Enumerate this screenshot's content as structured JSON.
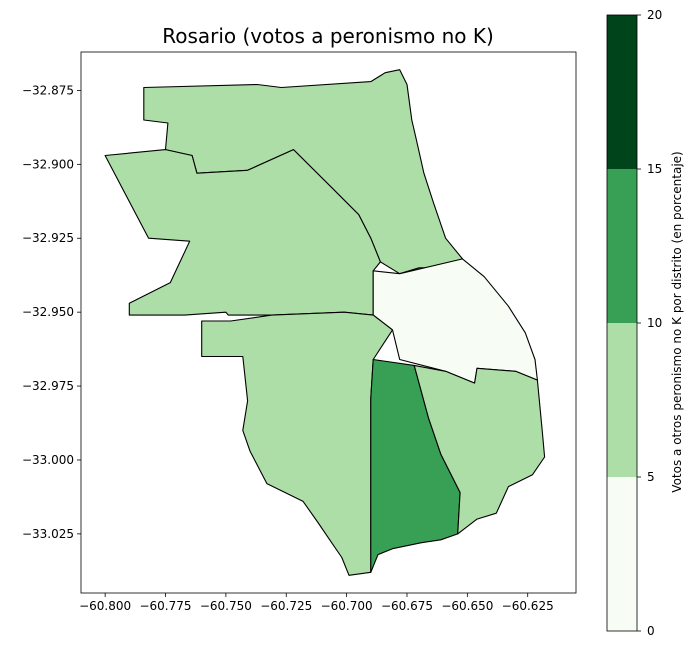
{
  "chart_data": {
    "type": "choropleth",
    "title": "Rosario (votos a peronismo no K)",
    "xlim": [
      -60.81,
      -60.605
    ],
    "ylim": [
      -33.045,
      -32.862
    ],
    "x_ticks": [
      -60.8,
      -60.775,
      -60.75,
      -60.725,
      -60.7,
      -60.675,
      -60.65,
      -60.625
    ],
    "x_tick_labels": [
      "−60.800",
      "−60.775",
      "−60.750",
      "−60.725",
      "−60.700",
      "−60.675",
      "−60.650",
      "−60.625"
    ],
    "y_ticks": [
      -32.875,
      -32.9,
      -32.925,
      -32.95,
      -32.975,
      -33.0,
      -33.025
    ],
    "y_tick_labels": [
      "−32.875",
      "−32.900",
      "−32.925",
      "−32.950",
      "−32.975",
      "−33.000",
      "−33.025"
    ],
    "colorbar": {
      "label": "Votos a otros peronismo no K por distrito (en porcentaje)",
      "bins": [
        0,
        5,
        10,
        15,
        20
      ],
      "tick_labels": [
        "0",
        "5",
        "10",
        "15",
        "20"
      ],
      "colors": [
        "#f7fcf5",
        "#addea7",
        "#37a055",
        "#00441b"
      ]
    },
    "districts": [
      {
        "value_bin": [
          5,
          10
        ],
        "color": "#addea7",
        "outline": [
          [
            -60.784,
            -32.874
          ],
          [
            -60.737,
            -32.873
          ],
          [
            -60.727,
            -32.874
          ],
          [
            -60.69,
            -32.872
          ],
          [
            -60.684,
            -32.869
          ],
          [
            -60.678,
            -32.868
          ],
          [
            -60.675,
            -32.873
          ],
          [
            -60.673,
            -32.885
          ],
          [
            -60.671,
            -32.892
          ],
          [
            -60.668,
            -32.903
          ],
          [
            -60.664,
            -32.913
          ],
          [
            -60.659,
            -32.925
          ],
          [
            -60.652,
            -32.932
          ],
          [
            -60.66,
            -32.935
          ],
          [
            -60.67,
            -32.935
          ],
          [
            -60.678,
            -32.937
          ],
          [
            -60.686,
            -32.933
          ],
          [
            -60.69,
            -32.925
          ],
          [
            -60.695,
            -32.917
          ],
          [
            -60.706,
            -32.908
          ],
          [
            -60.722,
            -32.895
          ],
          [
            -60.741,
            -32.902
          ],
          [
            -60.762,
            -32.903
          ],
          [
            -60.764,
            -32.897
          ],
          [
            -60.775,
            -32.895
          ],
          [
            -60.774,
            -32.886
          ],
          [
            -60.784,
            -32.885
          ]
        ]
      },
      {
        "value_bin": [
          5,
          10
        ],
        "color": "#addea7",
        "outline": [
          [
            -60.8,
            -32.897
          ],
          [
            -60.775,
            -32.895
          ],
          [
            -60.764,
            -32.897
          ],
          [
            -60.762,
            -32.903
          ],
          [
            -60.741,
            -32.902
          ],
          [
            -60.722,
            -32.895
          ],
          [
            -60.706,
            -32.908
          ],
          [
            -60.695,
            -32.917
          ],
          [
            -60.69,
            -32.925
          ],
          [
            -60.686,
            -32.933
          ],
          [
            -60.689,
            -32.936
          ],
          [
            -60.689,
            -32.951
          ],
          [
            -60.701,
            -32.95
          ],
          [
            -60.731,
            -32.951
          ],
          [
            -60.749,
            -32.951
          ],
          [
            -60.75,
            -32.95
          ],
          [
            -60.767,
            -32.951
          ],
          [
            -60.79,
            -32.951
          ],
          [
            -60.79,
            -32.947
          ],
          [
            -60.773,
            -32.94
          ],
          [
            -60.769,
            -32.933
          ],
          [
            -60.765,
            -32.926
          ],
          [
            -60.782,
            -32.925
          ]
        ]
      },
      {
        "value_bin": [
          0,
          5
        ],
        "color": "#f7fcf5",
        "outline": [
          [
            -60.689,
            -32.936
          ],
          [
            -60.678,
            -32.937
          ],
          [
            -60.652,
            -32.932
          ],
          [
            -60.643,
            -32.938
          ],
          [
            -60.633,
            -32.948
          ],
          [
            -60.626,
            -32.957
          ],
          [
            -60.622,
            -32.966
          ],
          [
            -60.621,
            -32.973
          ],
          [
            -60.63,
            -32.97
          ],
          [
            -60.646,
            -32.969
          ],
          [
            -60.647,
            -32.974
          ],
          [
            -60.659,
            -32.97
          ],
          [
            -60.678,
            -32.966
          ],
          [
            -60.681,
            -32.956
          ],
          [
            -60.689,
            -32.951
          ]
        ]
      },
      {
        "value_bin": [
          5,
          10
        ],
        "color": "#addea7",
        "outline": [
          [
            -60.689,
            -32.951
          ],
          [
            -60.701,
            -32.95
          ],
          [
            -60.731,
            -32.951
          ],
          [
            -60.748,
            -32.953
          ],
          [
            -60.76,
            -32.953
          ],
          [
            -60.76,
            -32.965
          ],
          [
            -60.743,
            -32.965
          ],
          [
            -60.741,
            -32.98
          ],
          [
            -60.743,
            -32.99
          ],
          [
            -60.74,
            -32.997
          ],
          [
            -60.733,
            -33.008
          ],
          [
            -60.718,
            -33.014
          ],
          [
            -60.712,
            -33.021
          ],
          [
            -60.707,
            -33.027
          ],
          [
            -60.702,
            -33.033
          ],
          [
            -60.699,
            -33.039
          ],
          [
            -60.69,
            -33.038
          ],
          [
            -60.69,
            -32.979
          ],
          [
            -60.689,
            -32.966
          ],
          [
            -60.681,
            -32.956
          ]
        ]
      },
      {
        "value_bin": [
          10,
          15
        ],
        "color": "#37a055",
        "outline": [
          [
            -60.689,
            -32.966
          ],
          [
            -60.672,
            -32.968
          ],
          [
            -60.666,
            -32.986
          ],
          [
            -60.661,
            -32.998
          ],
          [
            -60.653,
            -33.011
          ],
          [
            -60.654,
            -33.025
          ],
          [
            -60.661,
            -33.027
          ],
          [
            -60.669,
            -33.028
          ],
          [
            -60.675,
            -33.029
          ],
          [
            -60.681,
            -33.03
          ],
          [
            -60.687,
            -33.032
          ],
          [
            -60.69,
            -33.038
          ],
          [
            -60.69,
            -32.979
          ]
        ]
      },
      {
        "value_bin": [
          5,
          10
        ],
        "color": "#addea7",
        "outline": [
          [
            -60.672,
            -32.968
          ],
          [
            -60.659,
            -32.97
          ],
          [
            -60.647,
            -32.974
          ],
          [
            -60.646,
            -32.969
          ],
          [
            -60.63,
            -32.97
          ],
          [
            -60.621,
            -32.973
          ],
          [
            -60.619,
            -32.99
          ],
          [
            -60.618,
            -32.999
          ],
          [
            -60.623,
            -33.005
          ],
          [
            -60.633,
            -33.009
          ],
          [
            -60.638,
            -33.018
          ],
          [
            -60.646,
            -33.02
          ],
          [
            -60.654,
            -33.025
          ],
          [
            -60.653,
            -33.011
          ],
          [
            -60.661,
            -32.998
          ],
          [
            -60.666,
            -32.986
          ]
        ]
      }
    ]
  }
}
